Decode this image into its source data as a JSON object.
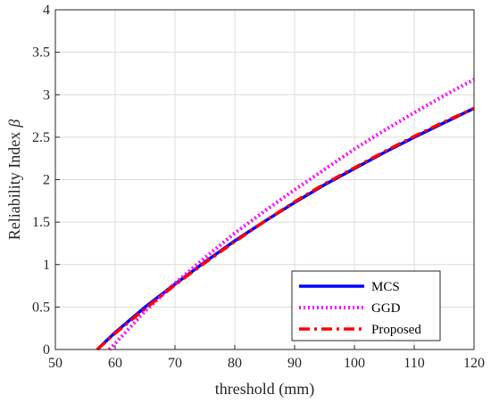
{
  "chart_data": {
    "type": "line",
    "xlabel": "threshold (mm)",
    "ylabel": "Reliability Index",
    "ylabel_symbol": "β",
    "xlim": [
      50,
      120
    ],
    "ylim": [
      0,
      4
    ],
    "xticks": [
      50,
      60,
      70,
      80,
      90,
      100,
      110,
      120
    ],
    "yticks": [
      0,
      0.5,
      1,
      1.5,
      2,
      2.5,
      3,
      3.5,
      4
    ],
    "ytick_labels": [
      "0",
      "0.5",
      "1",
      "1.5",
      "2",
      "2.5",
      "3",
      "3.5",
      "4"
    ],
    "grid": true,
    "legend_position": "bottom-right",
    "series": [
      {
        "name": "MCS",
        "color": "#0000ff",
        "style": "solid",
        "x": [
          57,
          60,
          65,
          70,
          75,
          80,
          85,
          90,
          95,
          100,
          105,
          110,
          115,
          120
        ],
        "y": [
          0.0,
          0.2,
          0.5,
          0.77,
          1.03,
          1.28,
          1.51,
          1.73,
          1.94,
          2.13,
          2.32,
          2.5,
          2.67,
          2.84
        ]
      },
      {
        "name": "GGD",
        "color": "#ff00ff",
        "style": "dotted",
        "x": [
          59,
          60,
          65,
          70,
          75,
          80,
          85,
          90,
          95,
          100,
          105,
          110,
          115,
          120
        ],
        "y": [
          0.0,
          0.07,
          0.45,
          0.78,
          1.08,
          1.37,
          1.63,
          1.88,
          2.12,
          2.36,
          2.58,
          2.79,
          2.99,
          3.18
        ]
      },
      {
        "name": "Proposed",
        "color": "#ff0000",
        "style": "dashdot",
        "x": [
          57,
          60,
          65,
          70,
          75,
          80,
          85,
          90,
          95,
          100,
          105,
          110,
          115,
          120
        ],
        "y": [
          0.0,
          0.19,
          0.48,
          0.76,
          1.02,
          1.27,
          1.51,
          1.74,
          1.95,
          2.14,
          2.33,
          2.51,
          2.68,
          2.84
        ]
      }
    ]
  }
}
